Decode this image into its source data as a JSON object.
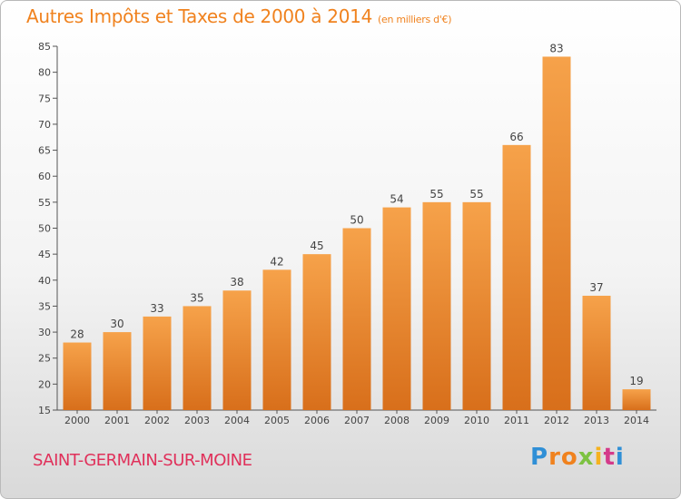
{
  "title": "Autres Impôts et Taxes de 2000 à 2014",
  "unit": "(en milliers d'€)",
  "place": "SAINT-GERMAIN-SUR-MOINE",
  "logo": "Proxiti",
  "colors": {
    "bar_light": "#f6a24a",
    "bar_dark": "#d86f1b",
    "title": "#f0821e",
    "place": "#e0305a"
  },
  "chart_data": {
    "type": "bar",
    "title": "Autres Impôts et Taxes de 2000 à 2014",
    "ylabel": "",
    "xlabel": "",
    "ylim": [
      15,
      85
    ],
    "yticks": [
      15,
      20,
      25,
      30,
      35,
      40,
      45,
      50,
      55,
      60,
      65,
      70,
      75,
      80,
      85
    ],
    "grid": false,
    "categories": [
      "2000",
      "2001",
      "2002",
      "2003",
      "2004",
      "2005",
      "2006",
      "2007",
      "2008",
      "2009",
      "2010",
      "2011",
      "2012",
      "2013",
      "2014"
    ],
    "values": [
      28,
      30,
      33,
      35,
      38,
      42,
      45,
      50,
      54,
      55,
      55,
      66,
      83,
      37,
      19
    ]
  }
}
